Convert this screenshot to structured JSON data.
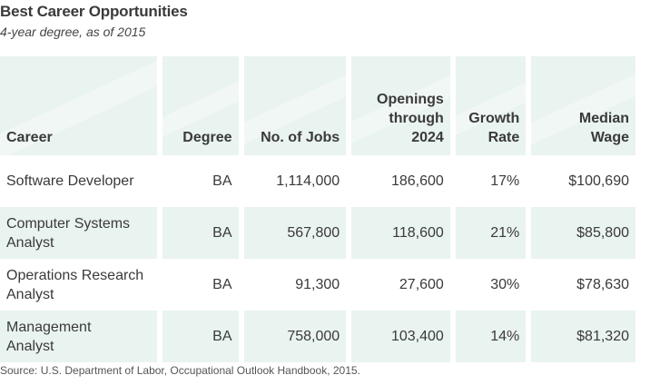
{
  "header": {
    "title": "Best Career Opportunities",
    "subtitle": "4-year degree, as of 2015"
  },
  "table": {
    "columns": [
      {
        "line1": "",
        "line2": "",
        "line3": "Career"
      },
      {
        "line1": "",
        "line2": "",
        "line3": "Degree"
      },
      {
        "line1": "",
        "line2": "",
        "line3": "No. of Jobs"
      },
      {
        "line1": "Openings",
        "line2": "through",
        "line3": "2024"
      },
      {
        "line1": "",
        "line2": "Growth",
        "line3": "Rate"
      },
      {
        "line1": "",
        "line2": "Median",
        "line3": "Wage"
      }
    ],
    "rows": [
      {
        "career_line1": "Software Developer",
        "career_line2": "",
        "degree": "BA",
        "jobs": "1,114,000",
        "openings": "186,600",
        "growth": "17%",
        "wage": "$100,690"
      },
      {
        "career_line1": "Computer Systems",
        "career_line2": "Analyst",
        "degree": "BA",
        "jobs": "567,800",
        "openings": "118,600",
        "growth": "21%",
        "wage": "$85,800"
      },
      {
        "career_line1": "Operations Research",
        "career_line2": "Analyst",
        "degree": "BA",
        "jobs": "91,300",
        "openings": "27,600",
        "growth": "30%",
        "wage": "$78,630"
      },
      {
        "career_line1": "Management",
        "career_line2": "Analyst",
        "degree": "BA",
        "jobs": "758,000",
        "openings": "103,400",
        "growth": "14%",
        "wage": "$81,320"
      }
    ]
  },
  "footer": {
    "source": "Source: U.S. Department of Labor, Occupational Outlook Handbook, 2015."
  },
  "colors": {
    "band": "#e9f3ef",
    "text": "#3a3a3a"
  }
}
